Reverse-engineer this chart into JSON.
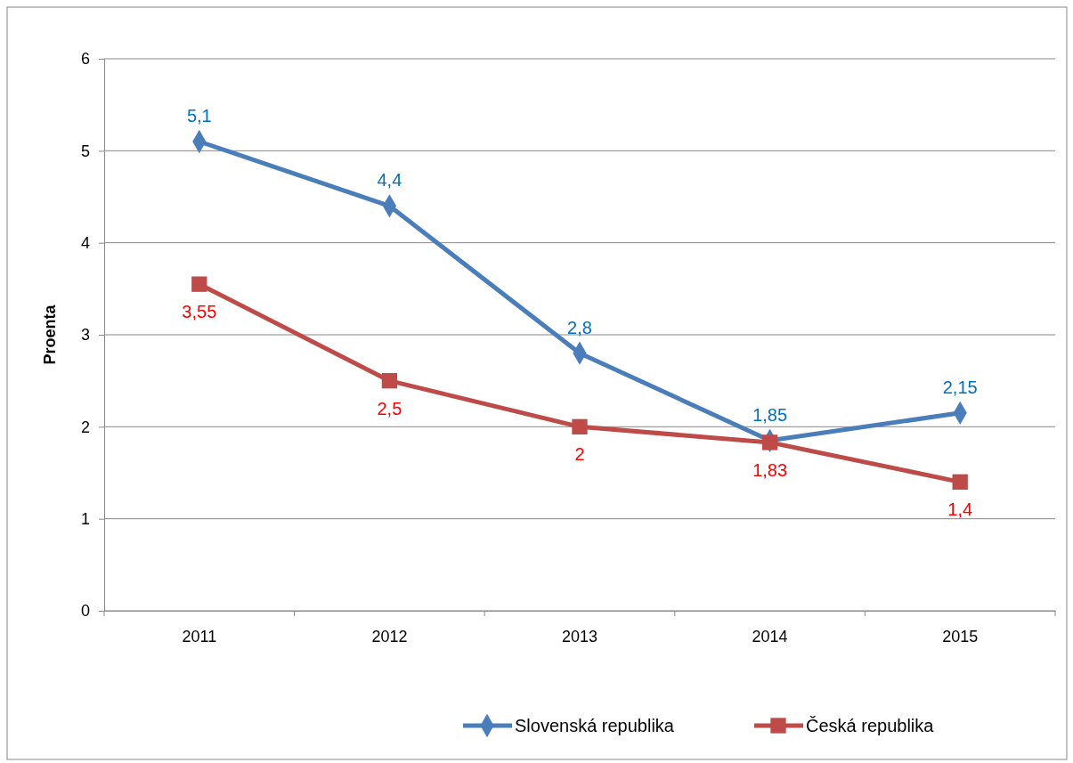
{
  "chart_data": {
    "type": "line",
    "ylabel": "Proenta",
    "categories": [
      "2011",
      "2012",
      "2013",
      "2014",
      "2015"
    ],
    "series": [
      {
        "name": "Slovenská republika",
        "color": "#4a7ebb",
        "marker": "diamond",
        "values": [
          5.1,
          4.4,
          2.8,
          1.85,
          2.15
        ],
        "value_labels": [
          "5,1",
          "4,4",
          "2,8",
          "1,85",
          "2,15"
        ]
      },
      {
        "name": "Česká republika",
        "color": "#be4b48",
        "marker": "square",
        "values": [
          3.55,
          2.5,
          2,
          1.83,
          1.4
        ],
        "value_labels": [
          "3,55",
          "2,5",
          "2",
          "1,83",
          "1,4"
        ]
      }
    ],
    "ylim": [
      0,
      6
    ],
    "yticks": [
      0,
      1,
      2,
      3,
      4,
      5,
      6
    ],
    "grid": "y",
    "legend": "bottom"
  }
}
